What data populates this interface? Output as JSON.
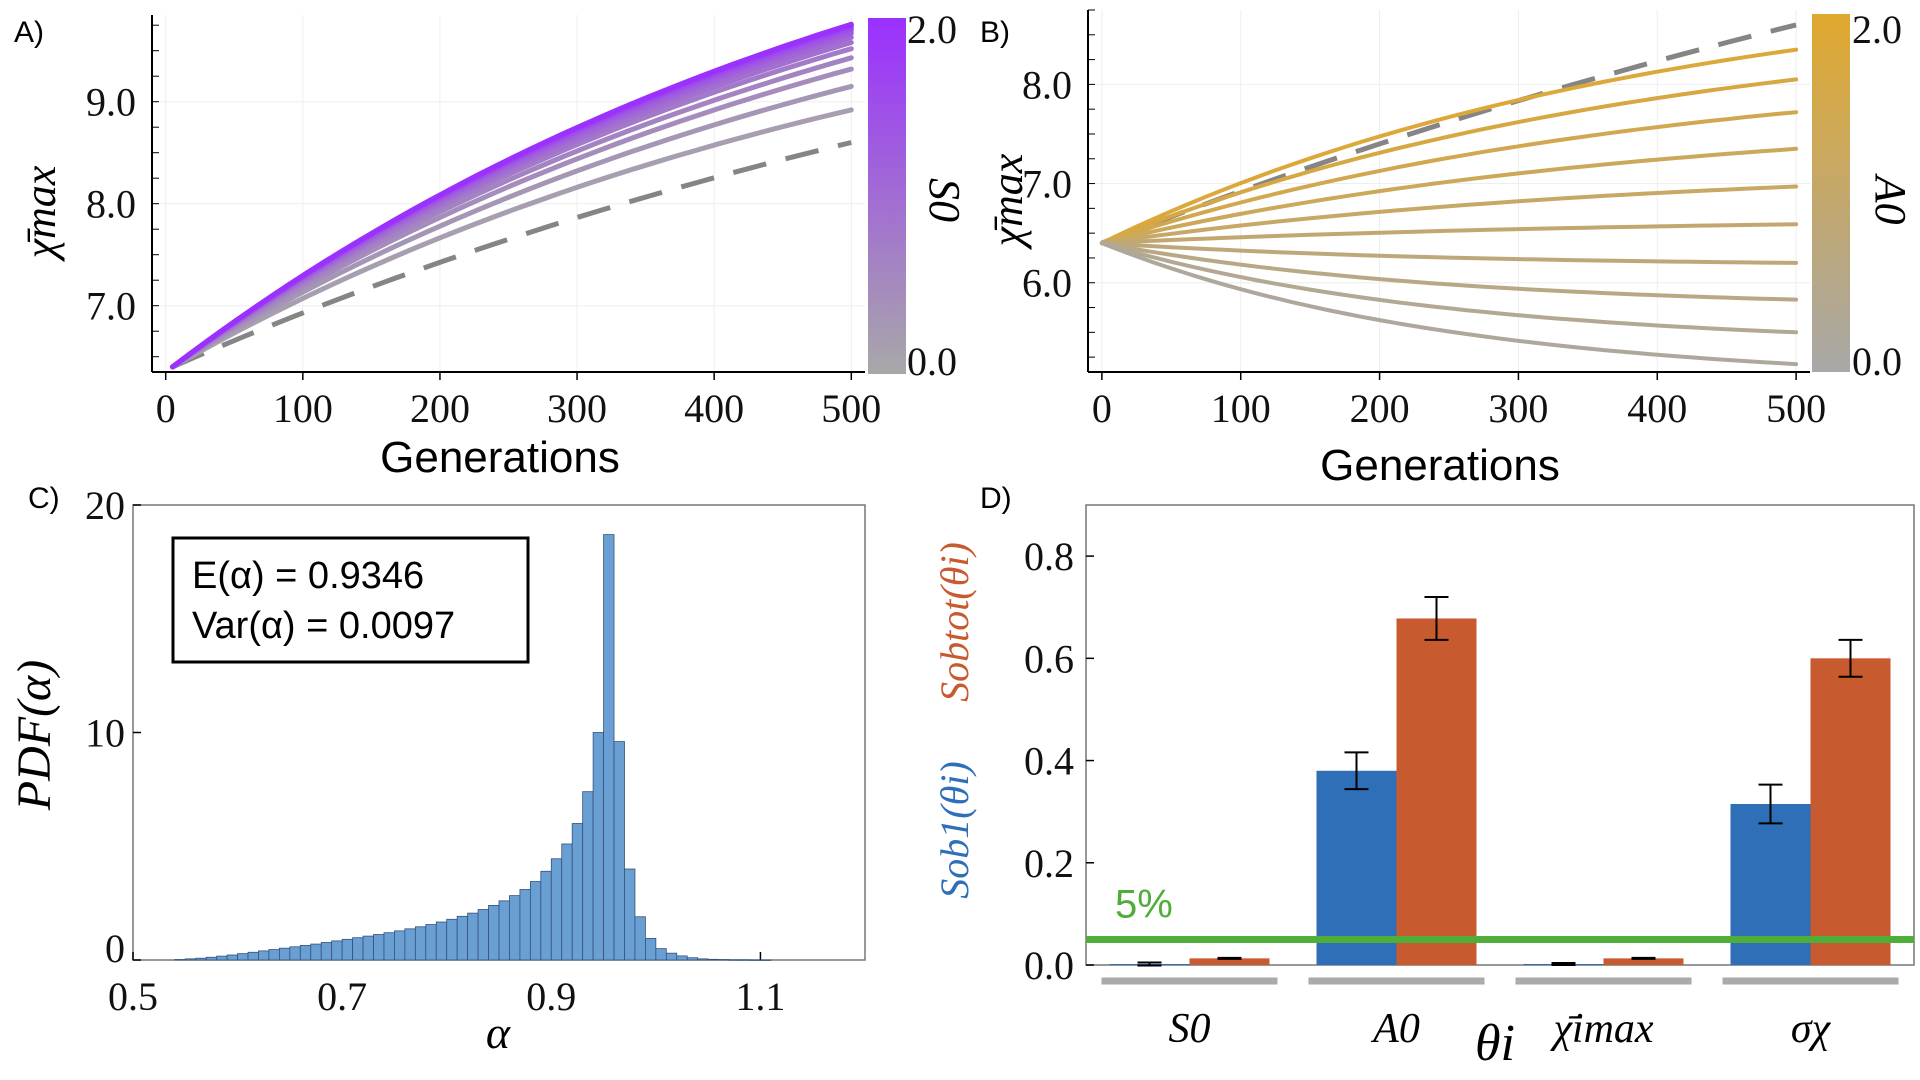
{
  "chart_data": [
    {
      "panel": "A)",
      "type": "line",
      "xlabel": "Generations",
      "ylabel": "χ̄max",
      "xlim": [
        -10,
        510
      ],
      "ylim": [
        6.35,
        9.85
      ],
      "xticks": [
        "0",
        "100",
        "200",
        "300",
        "400",
        "500"
      ],
      "yticks": [
        "7.0",
        "8.0",
        "9.0"
      ],
      "colorbar": {
        "label": "S0",
        "min_label": "0.0",
        "max_label": "2.0",
        "color_low": "#a8a8a8",
        "color_high": "#9b30ff"
      },
      "x": [
        5,
        50,
        100,
        150,
        200,
        250,
        300,
        350,
        400,
        450,
        500
      ],
      "baseline": {
        "name": "reference",
        "style": "dashed",
        "end_value": 8.6
      },
      "series_end_values": [
        8.92,
        9.15,
        9.32,
        9.43,
        9.52,
        9.58,
        9.63,
        9.67,
        9.7,
        9.72,
        9.74,
        9.75,
        9.76
      ],
      "start_value": 6.4
    },
    {
      "panel": "B)",
      "type": "line",
      "xlabel": "Generations",
      "ylabel": "χ̄max",
      "xlim": [
        -10,
        510
      ],
      "ylim": [
        5.1,
        8.75
      ],
      "xticks": [
        "0",
        "100",
        "200",
        "300",
        "400",
        "500"
      ],
      "yticks": [
        "6.0",
        "7.0",
        "8.0"
      ],
      "colorbar": {
        "label": "A0",
        "min_label": "0.0",
        "max_label": "2.0",
        "color_low": "#a8a8a8",
        "color_high": "#e0a82e"
      },
      "x": [
        0,
        50,
        100,
        150,
        200,
        250,
        300,
        350,
        400,
        450,
        500
      ],
      "baseline": {
        "name": "reference",
        "style": "dashed",
        "end_value": 8.6
      },
      "series_end_values": [
        8.35,
        8.05,
        7.72,
        7.35,
        6.97,
        6.59,
        6.2,
        5.83,
        5.5,
        5.18
      ],
      "start_value": 6.4
    },
    {
      "panel": "C)",
      "type": "bar",
      "subtype": "histogram",
      "xlabel": "α",
      "ylabel": "PDF(α)",
      "xlim": [
        0.5,
        1.2
      ],
      "ylim": [
        0,
        20
      ],
      "xticks": [
        "0.5",
        "0.7",
        "0.9",
        "1.1"
      ],
      "yticks": [
        "0",
        "10",
        "20"
      ],
      "annotation_lines": [
        "E(α) = 0.9346",
        "Var(α) = 0.0097"
      ],
      "bin_edges_start": 0.54,
      "bin_width": 0.01,
      "values": [
        0.02,
        0.05,
        0.08,
        0.12,
        0.17,
        0.22,
        0.28,
        0.34,
        0.4,
        0.46,
        0.52,
        0.58,
        0.64,
        0.7,
        0.77,
        0.84,
        0.91,
        0.98,
        1.05,
        1.12,
        1.2,
        1.28,
        1.37,
        1.46,
        1.56,
        1.67,
        1.79,
        1.92,
        2.06,
        2.22,
        2.4,
        2.6,
        2.83,
        3.1,
        3.45,
        3.9,
        4.45,
        5.1,
        6.0,
        7.4,
        10.0,
        18.7,
        9.6,
        4.0,
        1.9,
        0.95,
        0.5,
        0.3,
        0.18,
        0.1,
        0.05,
        0.03,
        0.02,
        0.01,
        0.01,
        0.005,
        0.003
      ],
      "color": "#6a9fd4"
    },
    {
      "panel": "D)",
      "type": "bar",
      "xlabel": "θi",
      "ylabel_first_order": "Sob1(θi)",
      "ylabel_total": "Sobtot(θi)",
      "ylim": [
        0,
        0.9
      ],
      "yticks": [
        "0.0",
        "0.2",
        "0.4",
        "0.6",
        "0.8"
      ],
      "categories": [
        "S0",
        "A0",
        "χ̄imax",
        "σχ"
      ],
      "series": [
        {
          "name": "Sob1",
          "color": "#2e6fb8",
          "values": [
            0.002,
            0.38,
            0.002,
            0.315
          ],
          "errors": [
            0.003,
            0.036,
            0.002,
            0.038
          ]
        },
        {
          "name": "Sobtot",
          "color": "#c85a30",
          "values": [
            0.013,
            0.678,
            0.013,
            0.6
          ],
          "errors": [
            0.001,
            0.042,
            0.001,
            0.036
          ]
        }
      ],
      "threshold": {
        "label": "5%",
        "value": 0.05,
        "color": "#4fae3a"
      }
    }
  ]
}
